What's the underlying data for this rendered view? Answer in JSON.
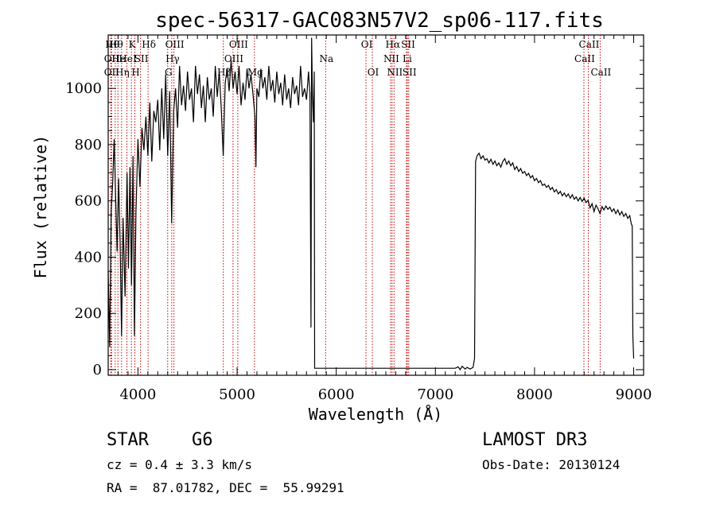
{
  "chart_data": {
    "type": "line",
    "title": "spec-56317-GAC083N57V2_sp06-117.fits",
    "xlabel": "Wavelength (Å)",
    "ylabel": "Flux (relative)",
    "xlim": [
      3700,
      9100
    ],
    "ylim": [
      -20,
      1190
    ],
    "x_ticks": [
      4000,
      5000,
      6000,
      7000,
      8000,
      9000
    ],
    "y_ticks": [
      0,
      200,
      400,
      600,
      800,
      1000
    ],
    "x_minor_step": 100,
    "y_minor_step": 50,
    "series": [
      {
        "name": "spectrum",
        "points": [
          [
            3700,
            350
          ],
          [
            3715,
            80
          ],
          [
            3730,
            560
          ],
          [
            3745,
            660
          ],
          [
            3760,
            820
          ],
          [
            3775,
            620
          ],
          [
            3790,
            420
          ],
          [
            3805,
            680
          ],
          [
            3820,
            450
          ],
          [
            3835,
            120
          ],
          [
            3850,
            540
          ],
          [
            3870,
            260
          ],
          [
            3890,
            700
          ],
          [
            3905,
            360
          ],
          [
            3920,
            720
          ],
          [
            3935,
            300
          ],
          [
            3950,
            760
          ],
          [
            3965,
            120
          ],
          [
            3980,
            560
          ],
          [
            4000,
            820
          ],
          [
            4020,
            650
          ],
          [
            4040,
            860
          ],
          [
            4060,
            780
          ],
          [
            4080,
            900
          ],
          [
            4100,
            760
          ],
          [
            4120,
            950
          ],
          [
            4140,
            740
          ],
          [
            4160,
            920
          ],
          [
            4180,
            880
          ],
          [
            4200,
            960
          ],
          [
            4220,
            780
          ],
          [
            4240,
            1000
          ],
          [
            4260,
            820
          ],
          [
            4280,
            1050
          ],
          [
            4300,
            760
          ],
          [
            4320,
            990
          ],
          [
            4340,
            520
          ],
          [
            4360,
            920
          ],
          [
            4380,
            1000
          ],
          [
            4400,
            860
          ],
          [
            4420,
            1080
          ],
          [
            4440,
            940
          ],
          [
            4460,
            1010
          ],
          [
            4480,
            920
          ],
          [
            4500,
            1060
          ],
          [
            4520,
            960
          ],
          [
            4540,
            1000
          ],
          [
            4560,
            880
          ],
          [
            4580,
            1080
          ],
          [
            4600,
            980
          ],
          [
            4620,
            1050
          ],
          [
            4640,
            930
          ],
          [
            4660,
            1010
          ],
          [
            4680,
            880
          ],
          [
            4700,
            1040
          ],
          [
            4720,
            960
          ],
          [
            4740,
            1000
          ],
          [
            4760,
            900
          ],
          [
            4780,
            1080
          ],
          [
            4800,
            970
          ],
          [
            4820,
            1060
          ],
          [
            4840,
            930
          ],
          [
            4860,
            760
          ],
          [
            4880,
            1020
          ],
          [
            4900,
            1070
          ],
          [
            4920,
            990
          ],
          [
            4940,
            1100
          ],
          [
            4960,
            1000
          ],
          [
            4980,
            1060
          ],
          [
            5000,
            980
          ],
          [
            5020,
            1080
          ],
          [
            5040,
            940
          ],
          [
            5060,
            1020
          ],
          [
            5080,
            960
          ],
          [
            5100,
            1070
          ],
          [
            5120,
            1000
          ],
          [
            5140,
            1050
          ],
          [
            5160,
            980
          ],
          [
            5180,
            900
          ],
          [
            5190,
            720
          ],
          [
            5200,
            1000
          ],
          [
            5220,
            970
          ],
          [
            5240,
            1070
          ],
          [
            5260,
            1000
          ],
          [
            5280,
            1040
          ],
          [
            5300,
            960
          ],
          [
            5320,
            1080
          ],
          [
            5340,
            990
          ],
          [
            5360,
            1030
          ],
          [
            5380,
            950
          ],
          [
            5400,
            1060
          ],
          [
            5420,
            980
          ],
          [
            5440,
            1020
          ],
          [
            5460,
            940
          ],
          [
            5480,
            1050
          ],
          [
            5500,
            960
          ],
          [
            5520,
            1000
          ],
          [
            5540,
            930
          ],
          [
            5560,
            1040
          ],
          [
            5580,
            980
          ],
          [
            5600,
            1010
          ],
          [
            5620,
            940
          ],
          [
            5640,
            1080
          ],
          [
            5660,
            970
          ],
          [
            5680,
            1000
          ],
          [
            5700,
            960
          ],
          [
            5720,
            1060
          ],
          [
            5735,
            980
          ],
          [
            5745,
            150
          ],
          [
            5752,
            1180
          ],
          [
            5760,
            980
          ],
          [
            5770,
            880
          ],
          [
            5778,
            1060
          ],
          [
            5782,
            5
          ],
          [
            5850,
            5
          ],
          [
            6100,
            5
          ],
          [
            6500,
            5
          ],
          [
            7000,
            5
          ],
          [
            7200,
            5
          ],
          [
            7230,
            10
          ],
          [
            7250,
            0
          ],
          [
            7270,
            12
          ],
          [
            7300,
            2
          ],
          [
            7320,
            8
          ],
          [
            7350,
            2
          ],
          [
            7380,
            8
          ],
          [
            7395,
            40
          ],
          [
            7405,
            740
          ],
          [
            7420,
            760
          ],
          [
            7440,
            770
          ],
          [
            7460,
            750
          ],
          [
            7480,
            760
          ],
          [
            7500,
            745
          ],
          [
            7520,
            750
          ],
          [
            7540,
            735
          ],
          [
            7560,
            748
          ],
          [
            7580,
            730
          ],
          [
            7600,
            742
          ],
          [
            7620,
            725
          ],
          [
            7640,
            735
          ],
          [
            7660,
            720
          ],
          [
            7680,
            740
          ],
          [
            7700,
            750
          ],
          [
            7720,
            730
          ],
          [
            7740,
            742
          ],
          [
            7760,
            725
          ],
          [
            7780,
            735
          ],
          [
            7800,
            712
          ],
          [
            7820,
            722
          ],
          [
            7840,
            705
          ],
          [
            7860,
            715
          ],
          [
            7880,
            698
          ],
          [
            7900,
            705
          ],
          [
            7920,
            690
          ],
          [
            7940,
            698
          ],
          [
            7960,
            682
          ],
          [
            7980,
            690
          ],
          [
            8000,
            672
          ],
          [
            8020,
            680
          ],
          [
            8040,
            665
          ],
          [
            8060,
            672
          ],
          [
            8080,
            655
          ],
          [
            8100,
            660
          ],
          [
            8120,
            648
          ],
          [
            8140,
            655
          ],
          [
            8160,
            640
          ],
          [
            8180,
            648
          ],
          [
            8200,
            632
          ],
          [
            8220,
            640
          ],
          [
            8240,
            625
          ],
          [
            8260,
            634
          ],
          [
            8280,
            618
          ],
          [
            8300,
            628
          ],
          [
            8320,
            615
          ],
          [
            8340,
            625
          ],
          [
            8360,
            610
          ],
          [
            8380,
            622
          ],
          [
            8400,
            606
          ],
          [
            8420,
            614
          ],
          [
            8440,
            600
          ],
          [
            8460,
            612
          ],
          [
            8480,
            598
          ],
          [
            8500,
            610
          ],
          [
            8520,
            594
          ],
          [
            8540,
            602
          ],
          [
            8560,
            575
          ],
          [
            8580,
            590
          ],
          [
            8600,
            562
          ],
          [
            8620,
            585
          ],
          [
            8640,
            572
          ],
          [
            8660,
            555
          ],
          [
            8680,
            580
          ],
          [
            8700,
            568
          ],
          [
            8720,
            582
          ],
          [
            8740,
            570
          ],
          [
            8760,
            578
          ],
          [
            8780,
            562
          ],
          [
            8800,
            572
          ],
          [
            8820,
            555
          ],
          [
            8840,
            568
          ],
          [
            8860,
            550
          ],
          [
            8880,
            562
          ],
          [
            8900,
            545
          ],
          [
            8920,
            555
          ],
          [
            8940,
            538
          ],
          [
            8960,
            548
          ],
          [
            8975,
            520
          ],
          [
            8985,
            510
          ],
          [
            8992,
            120
          ],
          [
            9000,
            40
          ]
        ]
      }
    ],
    "lines": [
      {
        "x": 3734,
        "row": 1,
        "label": "Hθ"
      },
      {
        "x": 3727,
        "row": 2,
        "label": "OII"
      },
      {
        "x": 3727,
        "row": 3,
        "label": "OII"
      },
      {
        "x": 3771,
        "row": 1,
        "label": "Hθ"
      },
      {
        "x": 3798,
        "row": 2,
        "label": "He"
      },
      {
        "x": 3835,
        "row": 3,
        "label": "Hη"
      },
      {
        "x": 3889,
        "row": 2,
        "label": "HeI"
      },
      {
        "x": 3934,
        "row": 1,
        "label": "K"
      },
      {
        "x": 3969,
        "row": 3,
        "label": "H"
      },
      {
        "x": 4026,
        "row": 2,
        "label": "SII"
      },
      {
        "x": 4102,
        "row": 1,
        "label": "Hδ"
      },
      {
        "x": 4300,
        "row": 3,
        "label": "G"
      },
      {
        "x": 4341,
        "row": 2,
        "label": "Hγ"
      },
      {
        "x": 4363,
        "row": 1,
        "label": "OIII"
      },
      {
        "x": 4861,
        "row": 3,
        "label": "Hβ"
      },
      {
        "x": 4959,
        "row": 2,
        "label": "OIII"
      },
      {
        "x": 5007,
        "row": 1,
        "label": "OIII"
      },
      {
        "x": 5175,
        "row": 3,
        "label": "Mg"
      },
      {
        "x": 5893,
        "row": 2,
        "label": "Na"
      },
      {
        "x": 6300,
        "row": 1,
        "label": "OI"
      },
      {
        "x": 6364,
        "row": 3,
        "label": "OI"
      },
      {
        "x": 6548,
        "row": 2,
        "label": "NII"
      },
      {
        "x": 6563,
        "row": 1,
        "label": "Hα"
      },
      {
        "x": 6583,
        "row": 3,
        "label": "NII"
      },
      {
        "x": 6708,
        "row": 2,
        "label": "Li"
      },
      {
        "x": 6717,
        "row": 1,
        "label": "SII"
      },
      {
        "x": 6731,
        "row": 3,
        "label": "SII"
      },
      {
        "x": 8498,
        "row": 2,
        "label": "CaII"
      },
      {
        "x": 8542,
        "row": 1,
        "label": "CaII"
      },
      {
        "x": 8662,
        "row": 3,
        "label": "CaII"
      }
    ]
  },
  "info": {
    "class_label": "STAR",
    "subclass": "G6",
    "survey": "LAMOST DR3",
    "cz": "cz = 0.4 ± 3.3 km/s",
    "obs_date": "Obs-Date: 20130124",
    "radec": "RA =  87.01782, DEC =  55.99291"
  },
  "colors": {
    "line_marker": "#cc0000",
    "spectrum": "#000000"
  }
}
